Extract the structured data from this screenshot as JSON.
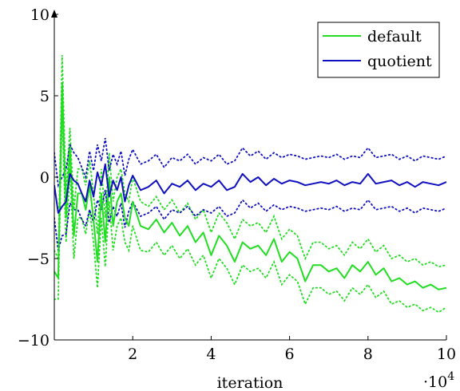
{
  "chart_data": {
    "type": "line",
    "title": "",
    "xlabel": "iteration",
    "ylabel": "",
    "x_multiplier_label": "·10",
    "x_multiplier_exp": "4",
    "xlim": [
      0,
      10
    ],
    "ylim": [
      -10,
      10
    ],
    "x_ticks": [
      2,
      4,
      6,
      8,
      10
    ],
    "y_ticks": [
      -10,
      -5,
      0,
      5,
      10
    ],
    "x_tick_labels": [
      "2",
      "4",
      "6",
      "8",
      "10"
    ],
    "y_tick_labels": [
      "−10",
      "−5",
      "0",
      "5",
      "10"
    ],
    "grid": false,
    "legend_position": "top-right",
    "x": [
      0.0,
      0.1,
      0.2,
      0.3,
      0.4,
      0.5,
      0.6,
      0.7,
      0.8,
      0.9,
      1.0,
      1.1,
      1.2,
      1.3,
      1.4,
      1.5,
      1.6,
      1.7,
      1.8,
      1.9,
      2.0,
      2.2,
      2.4,
      2.6,
      2.8,
      3.0,
      3.2,
      3.4,
      3.6,
      3.8,
      4.0,
      4.2,
      4.4,
      4.6,
      4.8,
      5.0,
      5.2,
      5.4,
      5.6,
      5.8,
      6.0,
      6.2,
      6.4,
      6.6,
      6.8,
      7.0,
      7.2,
      7.4,
      7.6,
      7.8,
      8.0,
      8.2,
      8.4,
      8.6,
      8.8,
      9.0,
      9.2,
      9.4,
      9.6,
      9.8,
      10.0
    ],
    "series": [
      {
        "name": "default",
        "color": "#22dd22",
        "values": [
          -5.8,
          -6.2,
          5.8,
          -2.5,
          1.8,
          -3.6,
          -1.0,
          -1.0,
          -2.0,
          -0.5,
          -2.6,
          -5.2,
          -1.0,
          -4.0,
          0.0,
          -3.0,
          -1.5,
          -1.0,
          -2.5,
          -3.0,
          -1.5,
          -3.0,
          -3.2,
          -2.6,
          -3.4,
          -2.8,
          -3.6,
          -3.0,
          -4.0,
          -3.4,
          -4.8,
          -3.6,
          -4.2,
          -5.2,
          -4.0,
          -4.4,
          -4.2,
          -4.8,
          -3.8,
          -5.2,
          -4.6,
          -5.0,
          -6.4,
          -5.4,
          -5.4,
          -5.8,
          -5.6,
          -6.2,
          -5.4,
          -5.8,
          -5.2,
          -6.0,
          -5.6,
          -6.4,
          -6.2,
          -6.6,
          -6.4,
          -6.8,
          -6.6,
          -6.9,
          -6.8
        ],
        "upper": [
          -4.5,
          -5.0,
          7.5,
          -1.0,
          3.0,
          -2.0,
          0.5,
          0.5,
          -0.5,
          1.0,
          -1.0,
          -3.5,
          0.5,
          -2.5,
          1.5,
          -1.5,
          0.0,
          0.5,
          -1.0,
          -1.5,
          0.0,
          -1.5,
          -1.8,
          -1.2,
          -2.0,
          -1.4,
          -2.2,
          -1.6,
          -2.6,
          -2.0,
          -3.4,
          -2.2,
          -2.8,
          -3.8,
          -2.6,
          -3.0,
          -2.8,
          -3.4,
          -2.4,
          -3.8,
          -3.2,
          -3.6,
          -5.0,
          -4.0,
          -4.0,
          -4.4,
          -4.2,
          -4.8,
          -4.0,
          -4.4,
          -3.8,
          -4.6,
          -4.2,
          -5.0,
          -4.8,
          -5.2,
          -5.0,
          -5.4,
          -5.2,
          -5.5,
          -5.4
        ],
        "lower": [
          -7.5,
          -7.5,
          4.0,
          -4.0,
          0.5,
          -5.0,
          -2.5,
          -2.5,
          -3.5,
          -2.0,
          -4.0,
          -6.8,
          -2.5,
          -5.5,
          -1.5,
          -4.5,
          -3.0,
          -2.5,
          -4.0,
          -4.5,
          -3.0,
          -4.5,
          -4.6,
          -4.0,
          -4.8,
          -4.2,
          -5.0,
          -4.4,
          -5.4,
          -4.8,
          -6.2,
          -5.0,
          -5.6,
          -6.6,
          -5.4,
          -5.8,
          -5.6,
          -6.2,
          -5.2,
          -6.6,
          -6.0,
          -6.4,
          -7.8,
          -6.8,
          -6.8,
          -7.2,
          -7.0,
          -7.6,
          -6.8,
          -7.2,
          -6.6,
          -7.4,
          -7.0,
          -7.8,
          -7.6,
          -8.0,
          -7.8,
          -8.2,
          -8.0,
          -8.3,
          -8.0
        ]
      },
      {
        "name": "quotient",
        "color": "#1010c0",
        "values": [
          -0.5,
          -2.2,
          -1.8,
          -1.5,
          0.2,
          -0.2,
          -0.4,
          -1.0,
          -1.5,
          -0.2,
          -1.2,
          0.3,
          -0.5,
          0.8,
          -1.2,
          -0.2,
          -0.8,
          0.0,
          -1.5,
          -0.5,
          0.1,
          -0.8,
          -0.6,
          -0.2,
          -1.0,
          -0.4,
          -0.6,
          -0.2,
          -0.8,
          -0.4,
          -0.6,
          -0.2,
          -0.8,
          -0.6,
          0.2,
          -0.3,
          0.0,
          -0.5,
          -0.1,
          -0.4,
          -0.2,
          -0.3,
          -0.5,
          -0.4,
          -0.3,
          -0.4,
          -0.2,
          -0.5,
          -0.3,
          -0.4,
          0.2,
          -0.4,
          -0.3,
          -0.2,
          -0.5,
          -0.3,
          -0.6,
          -0.3,
          -0.4,
          -0.5,
          -0.3
        ],
        "upper": [
          1.5,
          -0.5,
          0.0,
          0.5,
          2.0,
          1.5,
          1.2,
          0.6,
          0.0,
          1.6,
          0.4,
          2.0,
          1.0,
          2.4,
          0.4,
          1.4,
          0.8,
          1.6,
          0.1,
          1.1,
          1.7,
          0.8,
          1.0,
          1.4,
          0.6,
          1.2,
          1.0,
          1.4,
          0.8,
          1.2,
          1.0,
          1.4,
          0.8,
          1.0,
          1.8,
          1.3,
          1.6,
          1.1,
          1.5,
          1.2,
          1.4,
          1.3,
          1.1,
          1.2,
          1.3,
          1.2,
          1.4,
          1.1,
          1.3,
          1.2,
          1.8,
          1.2,
          1.3,
          1.4,
          1.1,
          1.3,
          1.0,
          1.3,
          1.2,
          1.1,
          1.3
        ],
        "lower": [
          -2.5,
          -4.5,
          -3.6,
          -3.5,
          -1.6,
          -2.0,
          -2.0,
          -2.6,
          -3.0,
          -2.0,
          -2.8,
          -1.4,
          -2.0,
          -0.8,
          -2.8,
          -1.8,
          -2.4,
          -1.6,
          -3.1,
          -2.1,
          -1.5,
          -2.4,
          -2.2,
          -1.8,
          -2.6,
          -2.0,
          -2.2,
          -1.8,
          -2.4,
          -2.0,
          -2.2,
          -1.8,
          -2.4,
          -2.2,
          -1.4,
          -1.9,
          -1.6,
          -2.1,
          -1.7,
          -2.0,
          -1.8,
          -1.9,
          -2.1,
          -2.0,
          -1.9,
          -2.0,
          -1.8,
          -2.1,
          -1.9,
          -2.0,
          -1.4,
          -2.0,
          -1.9,
          -1.8,
          -2.1,
          -1.9,
          -2.2,
          -1.9,
          -2.0,
          -2.1,
          -1.9
        ]
      }
    ]
  }
}
